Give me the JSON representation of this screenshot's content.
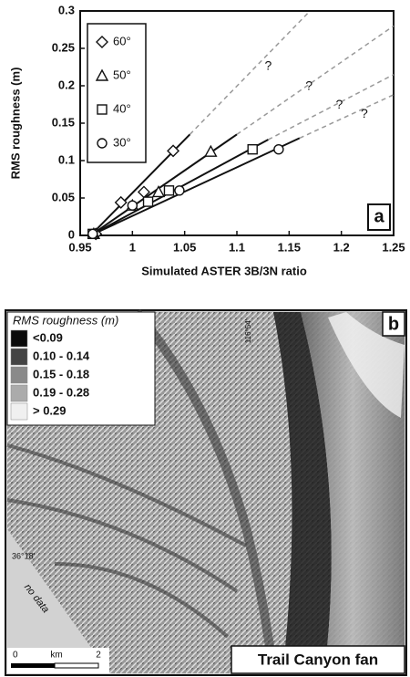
{
  "chart_data": {
    "type": "scatter",
    "panel_label": "a",
    "xlabel": "Simulated ASTER 3B/3N ratio",
    "ylabel": "RMS roughness (m)",
    "xlim": [
      0.95,
      1.25
    ],
    "ylim": [
      0,
      0.3
    ],
    "xticks": [
      0.95,
      1,
      1.05,
      1.1,
      1.15,
      1.2,
      1.25
    ],
    "yticks": [
      0,
      0.05,
      0.1,
      0.15,
      0.2,
      0.25,
      0.3
    ],
    "series": [
      {
        "name": "60°",
        "marker": "diamond",
        "color": "#111",
        "x": [
          0.965,
          0.989,
          1.011,
          1.039
        ],
        "values": [
          0.002,
          0.044,
          0.058,
          0.113
        ],
        "fit": {
          "x": [
            0.96,
            1.055,
            1.17
          ],
          "y": [
            0,
            0.135,
            0.3
          ]
        }
      },
      {
        "name": "50°",
        "marker": "triangle",
        "color": "#111",
        "x": [
          0.963,
          1.0,
          1.025,
          1.075
        ],
        "values": [
          0.002,
          0.04,
          0.058,
          0.112
        ],
        "fit": {
          "x": [
            0.96,
            1.1,
            1.25
          ],
          "y": [
            0,
            0.135,
            0.28
          ]
        }
      },
      {
        "name": "40°",
        "marker": "square",
        "color": "#111",
        "x": [
          0.962,
          1.015,
          1.035,
          1.115
        ],
        "values": [
          0.002,
          0.045,
          0.06,
          0.115
        ],
        "fit": {
          "x": [
            0.96,
            1.13,
            1.25
          ],
          "y": [
            0,
            0.128,
            0.215
          ]
        }
      },
      {
        "name": "30°",
        "marker": "circle",
        "color": "#111",
        "x": [
          0.962,
          1.0,
          1.045,
          1.14
        ],
        "values": [
          0.002,
          0.04,
          0.06,
          0.115
        ],
        "fit": {
          "x": [
            0.96,
            1.16,
            1.25
          ],
          "y": [
            0,
            0.13,
            0.188
          ]
        }
      }
    ],
    "annotations": [
      {
        "text": "?",
        "x": 1.13,
        "y": 0.226
      },
      {
        "text": "?",
        "x": 1.169,
        "y": 0.199
      },
      {
        "text": "?",
        "x": 1.198,
        "y": 0.174
      },
      {
        "text": "?",
        "x": 1.222,
        "y": 0.162
      }
    ]
  },
  "map": {
    "panel_label": "b",
    "legend_title": "RMS roughness (m)",
    "legend": [
      {
        "label": "<0.09",
        "color": "#0a0a0a"
      },
      {
        "label": "0.10 - 0.14",
        "color": "#444444"
      },
      {
        "label": "0.15 - 0.18",
        "color": "#8a8a8a"
      },
      {
        "label": "0.19 - 0.28",
        "color": "#ababab"
      },
      {
        "label": "> 0.29",
        "color": "#f0f0f0"
      }
    ],
    "longitude": "116°54'",
    "latitude": "36°18'",
    "no_data": "no data",
    "scale": [
      "0",
      "km",
      "2"
    ],
    "caption": "Trail Canyon fan"
  }
}
